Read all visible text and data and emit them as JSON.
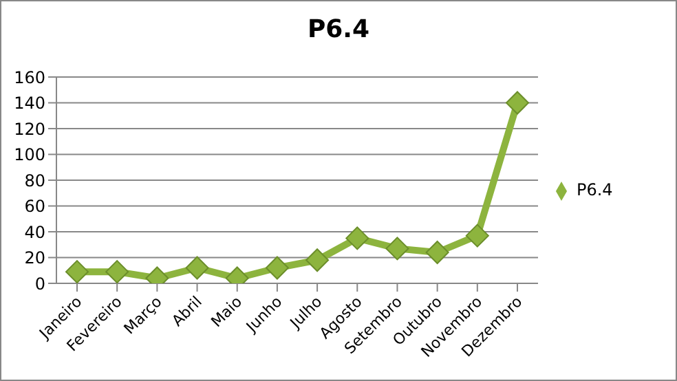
{
  "chart_data": {
    "type": "line",
    "title": "P6.4",
    "categories": [
      "Janeiro",
      "Fevereiro",
      "Março",
      "Abril",
      "Maio",
      "Junho",
      "Julho",
      "Agosto",
      "Setembro",
      "Outubro",
      "Novembro",
      "Dezembro"
    ],
    "series": [
      {
        "name": "P6.4",
        "color": "#8db43e",
        "values": [
          9,
          9,
          4,
          12,
          4,
          12,
          18,
          35,
          27,
          24,
          37,
          140
        ]
      }
    ],
    "ylim": [
      0,
      160
    ],
    "yticks": [
      0,
      20,
      40,
      60,
      80,
      100,
      120,
      140,
      160
    ],
    "grid": "y",
    "legend": "right",
    "marker": "diamond",
    "line_style": "solid"
  }
}
